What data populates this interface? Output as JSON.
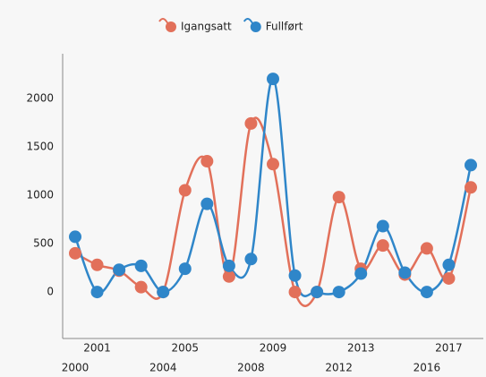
{
  "chart_data": {
    "type": "line",
    "smooth": true,
    "categories": [
      "2000",
      "2001",
      null,
      null,
      "2004",
      "2005",
      null,
      null,
      "2008",
      "2009",
      null,
      null,
      "2012",
      "2013",
      null,
      null,
      "2016",
      "2017",
      null
    ],
    "series": [
      {
        "name": "Igangsatt",
        "color": "#e2705a",
        "values": [
          400,
          280,
          220,
          50,
          0,
          1050,
          1350,
          160,
          1740,
          1320,
          0,
          0,
          980,
          240,
          480,
          180,
          450,
          140,
          1080
        ]
      },
      {
        "name": "Fullført",
        "color": "#2f86c9",
        "values": [
          570,
          0,
          230,
          270,
          0,
          240,
          910,
          270,
          340,
          2200,
          170,
          0,
          0,
          190,
          680,
          200,
          0,
          280,
          1310
        ]
      }
    ],
    "ylim": [
      -480,
      2460
    ],
    "yticks": [
      0,
      500,
      1000,
      1500,
      2000
    ],
    "legend": "top"
  }
}
